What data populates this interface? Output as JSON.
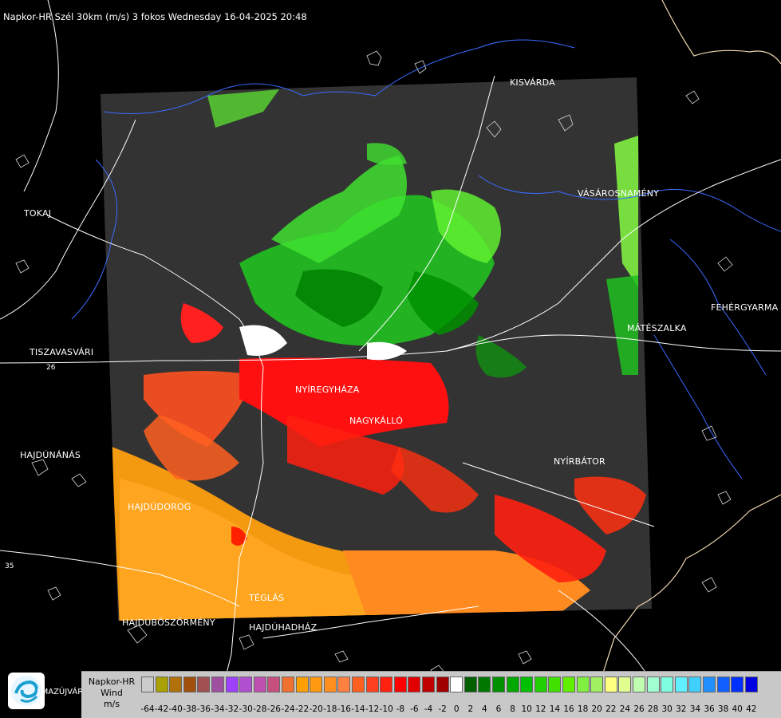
{
  "header": {
    "title": "Napkor-HR Szél 30km (m/s) 3 fokos Wednesday 16-04-2025 20:48"
  },
  "cities": [
    {
      "id": "kisvarda",
      "name": "KISVÁRDA"
    },
    {
      "id": "vasarosnameny",
      "name": "VÁSÁROSNAMÉNY"
    },
    {
      "id": "tokaj",
      "name": "TOKAJ"
    },
    {
      "id": "fehergyarmat",
      "name": "FEHÉRGYARMA"
    },
    {
      "id": "mateszalka",
      "name": "MÁTÉSZALKA"
    },
    {
      "id": "tiszavasvari",
      "name": "TISZAVASVÁRI"
    },
    {
      "id": "nyiregyhaza",
      "name": "NYÍREGYHÁZA"
    },
    {
      "id": "nagykallo",
      "name": "NAGYKÁLLÓ"
    },
    {
      "id": "hajdunanas",
      "name": "HAJDÚNÁNÁS"
    },
    {
      "id": "nyirbator",
      "name": "NYÍRBÁTOR"
    },
    {
      "id": "hajdudorog",
      "name": "HAJDÚDOROG"
    },
    {
      "id": "teglas",
      "name": "TÉGLÁS"
    },
    {
      "id": "hajduboszormeny",
      "name": "HAJDÚBÖSZÖRMÉNY"
    },
    {
      "id": "hajduhadhaz",
      "name": "HAJDÚHADHÁZ"
    }
  ],
  "roads": {
    "r1": "26",
    "r2": "35"
  },
  "logo": {
    "text": "LMAZÚJVÁR"
  },
  "legend": {
    "title_line1": "Napkor-HR",
    "title_line2": "Wind",
    "title_line3": "m/s",
    "colors": [
      "#cccccc",
      "#aaa000",
      "#b0700a",
      "#a0500a",
      "#a05050",
      "#a050a0",
      "#a040ff",
      "#b050d0",
      "#c050b0",
      "#c85080",
      "#f07030",
      "#ffa000",
      "#ff9a10",
      "#ff9020",
      "#ff8040",
      "#ff6020",
      "#ff4020",
      "#ff2010",
      "#ff0000",
      "#e00000",
      "#c00000",
      "#a00000",
      "#ffffff",
      "#006000",
      "#007800",
      "#009000",
      "#00a800",
      "#00c000",
      "#20d000",
      "#40e000",
      "#60f000",
      "#80f040",
      "#a0f060",
      "#ffff80",
      "#e0ff90",
      "#c0ffb0",
      "#a0ffd0",
      "#80ffe0",
      "#60f0ff",
      "#40d0ff",
      "#2090ff",
      "#1060ff",
      "#0030ff",
      "#0000e0"
    ],
    "ticks": [
      "-64",
      "-42",
      "-40",
      "-38",
      "-36",
      "-34",
      "-32",
      "-30",
      "-28",
      "-26",
      "-24",
      "-22",
      "-20",
      "-18",
      "-16",
      "-14",
      "-12",
      "-10",
      "-8",
      "-6",
      "-4",
      "-2",
      "0",
      "2",
      "4",
      "6",
      "8",
      "10",
      "12",
      "14",
      "16",
      "18",
      "20",
      "22",
      "24",
      "26",
      "28",
      "30",
      "32",
      "34",
      "36",
      "38",
      "40",
      "42"
    ]
  }
}
